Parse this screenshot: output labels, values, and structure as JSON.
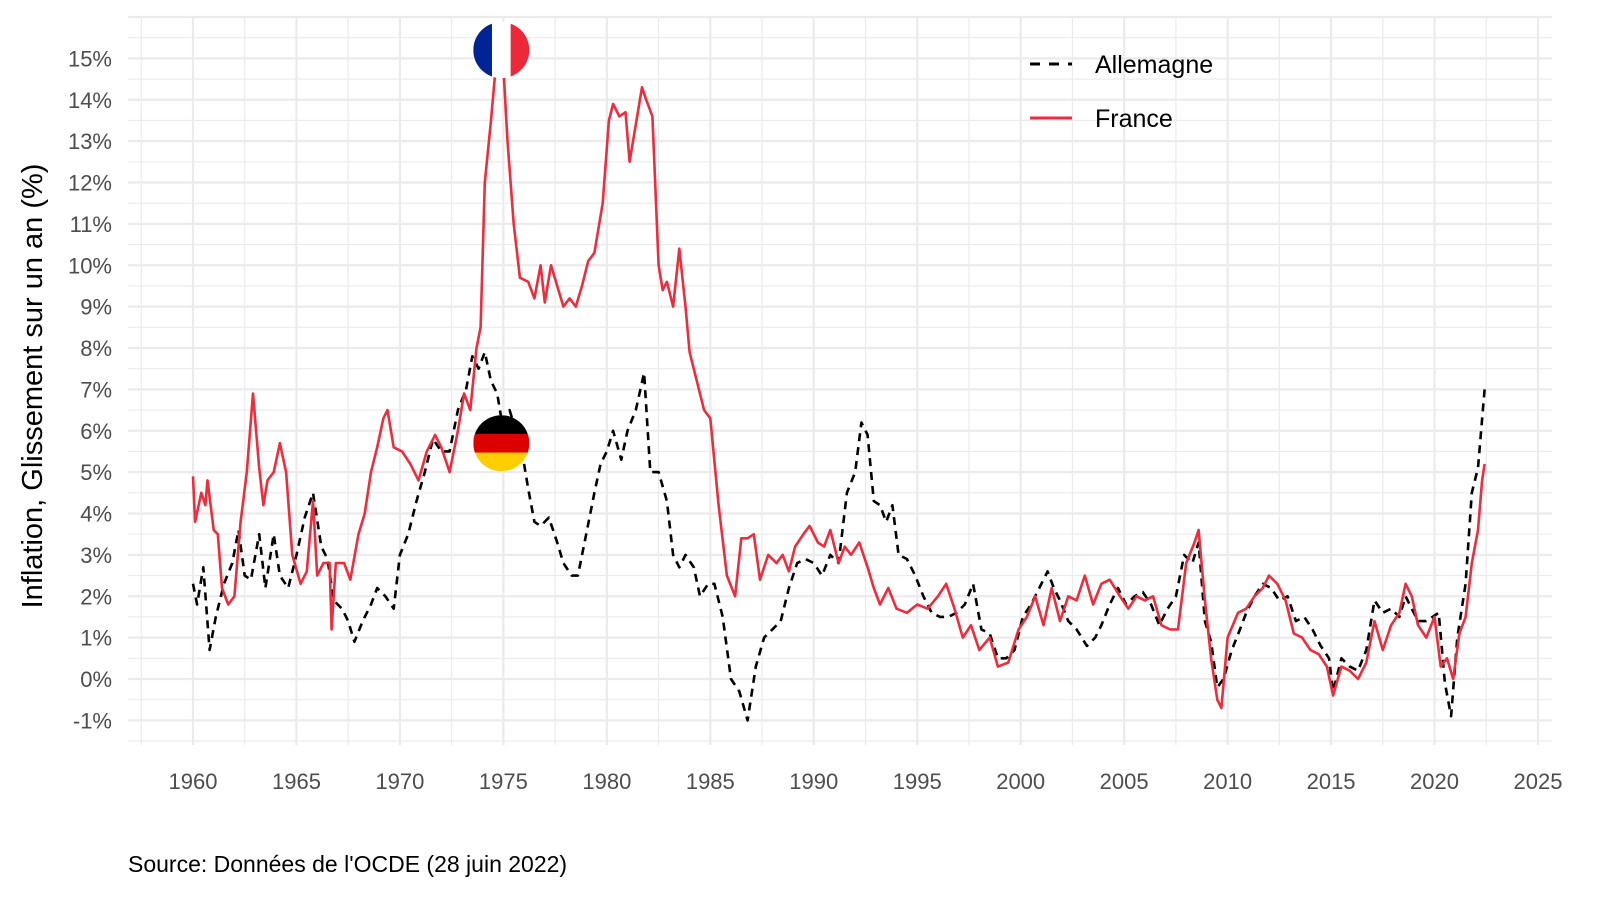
{
  "chart_data": {
    "type": "line",
    "title": "",
    "xlabel": "",
    "ylabel": "Inflation, Glissement sur un an (%)",
    "caption": "Source: Données de l'OCDE (28 juin 2022)",
    "xlim": [
      1957,
      2025.5
    ],
    "ylim": [
      -1.5,
      16
    ],
    "x_ticks": [
      1960,
      1965,
      1970,
      1975,
      1980,
      1985,
      1990,
      1995,
      2000,
      2005,
      2010,
      2015,
      2020,
      2025
    ],
    "y_ticks": [
      -1,
      0,
      1,
      2,
      3,
      4,
      5,
      6,
      7,
      8,
      9,
      10,
      11,
      12,
      13,
      14,
      15
    ],
    "y_tick_labels": [
      "-1%",
      "0%",
      "1%",
      "2%",
      "3%",
      "4%",
      "5%",
      "6%",
      "7%",
      "8%",
      "9%",
      "10%",
      "11%",
      "12%",
      "13%",
      "14%",
      "15%"
    ],
    "grid": true,
    "legend_position": "top-right",
    "flags": [
      {
        "series": "France",
        "x": 1974.9,
        "y": 15.2,
        "colors": [
          "#002395",
          "#ffffff",
          "#ED2939"
        ]
      },
      {
        "series": "Allemagne",
        "x": 1974.9,
        "y": 5.7,
        "colors": [
          "#000000",
          "#DD0000",
          "#FFCE00"
        ]
      }
    ],
    "series": [
      {
        "name": "Allemagne",
        "color": "#000000",
        "style": "dashed",
        "x": [
          1960.0,
          1960.2,
          1960.5,
          1960.8,
          1961.1,
          1961.5,
          1961.9,
          1962.2,
          1962.5,
          1962.8,
          1963.2,
          1963.5,
          1963.9,
          1964.2,
          1964.6,
          1965.0,
          1965.4,
          1965.8,
          1966.2,
          1966.5,
          1966.8,
          1967.2,
          1967.5,
          1967.8,
          1968.2,
          1968.6,
          1968.9,
          1969.3,
          1969.7,
          1970.0,
          1970.4,
          1970.8,
          1971.2,
          1971.6,
          1972.0,
          1972.4,
          1972.8,
          1973.2,
          1973.5,
          1973.8,
          1974.1,
          1974.4,
          1974.7,
          1975.0,
          1975.3,
          1975.6,
          1975.9,
          1976.2,
          1976.5,
          1976.8,
          1977.2,
          1977.6,
          1977.9,
          1978.3,
          1978.6,
          1979.0,
          1979.4,
          1979.7,
          1980.0,
          1980.3,
          1980.7,
          1981.0,
          1981.4,
          1981.8,
          1982.1,
          1982.5,
          1982.9,
          1983.2,
          1983.5,
          1983.8,
          1984.2,
          1984.5,
          1984.9,
          1985.2,
          1985.6,
          1986.0,
          1986.4,
          1986.8,
          1987.2,
          1987.6,
          1988.0,
          1988.4,
          1988.8,
          1989.2,
          1989.6,
          1990.0,
          1990.4,
          1990.8,
          1991.2,
          1991.6,
          1992.0,
          1992.3,
          1992.6,
          1992.9,
          1993.2,
          1993.5,
          1993.8,
          1994.1,
          1994.5,
          1994.9,
          1995.3,
          1995.7,
          1996.1,
          1996.5,
          1996.9,
          1997.3,
          1997.7,
          1998.1,
          1998.5,
          1998.9,
          1999.3,
          1999.7,
          2000.1,
          2000.5,
          2000.9,
          2001.3,
          2001.6,
          2001.9,
          2002.3,
          2002.7,
          2003.2,
          2003.6,
          2003.9,
          2004.3,
          2004.7,
          2005.1,
          2005.5,
          2005.9,
          2006.3,
          2006.7,
          2007.1,
          2007.5,
          2007.9,
          2008.3,
          2008.6,
          2008.9,
          2009.2,
          2009.5,
          2009.8,
          2010.2,
          2010.6,
          2010.9,
          2011.3,
          2011.7,
          2012.1,
          2012.5,
          2012.9,
          2013.3,
          2013.7,
          2014.1,
          2014.5,
          2014.9,
          2015.1,
          2015.5,
          2015.9,
          2016.3,
          2016.7,
          2017.1,
          2017.5,
          2017.9,
          2018.3,
          2018.6,
          2018.9,
          2019.2,
          2019.6,
          2019.9,
          2020.2,
          2020.5,
          2020.8,
          2021.1,
          2021.5,
          2021.8,
          2022.1,
          2022.42
        ],
        "values": [
          2.3,
          1.8,
          2.7,
          0.7,
          1.5,
          2.3,
          2.8,
          3.6,
          2.5,
          2.4,
          3.5,
          2.2,
          3.5,
          2.5,
          2.2,
          3.0,
          3.9,
          4.5,
          3.2,
          2.9,
          1.9,
          1.7,
          1.4,
          0.9,
          1.4,
          1.8,
          2.2,
          2.0,
          1.7,
          3.0,
          3.5,
          4.3,
          5.0,
          5.8,
          5.5,
          5.5,
          6.5,
          7.0,
          7.8,
          7.5,
          7.9,
          7.2,
          6.9,
          6.0,
          6.5,
          6.0,
          5.5,
          4.6,
          3.8,
          3.7,
          3.9,
          3.3,
          2.8,
          2.5,
          2.5,
          3.5,
          4.5,
          5.2,
          5.5,
          6.0,
          5.3,
          6.0,
          6.5,
          7.4,
          5.0,
          5.0,
          4.3,
          3.0,
          2.7,
          3.0,
          2.7,
          2.0,
          2.3,
          2.3,
          1.5,
          0.0,
          -0.3,
          -1.0,
          0.3,
          1.0,
          1.2,
          1.4,
          2.2,
          2.8,
          2.9,
          2.8,
          2.5,
          3.0,
          2.8,
          4.5,
          5.0,
          6.2,
          5.9,
          4.3,
          4.2,
          3.8,
          4.2,
          3.0,
          2.9,
          2.5,
          2.0,
          1.6,
          1.5,
          1.5,
          1.6,
          1.8,
          2.3,
          1.2,
          1.1,
          0.5,
          0.5,
          0.7,
          1.5,
          1.8,
          2.2,
          2.6,
          2.2,
          1.9,
          1.4,
          1.2,
          0.8,
          1.0,
          1.3,
          1.8,
          2.2,
          1.8,
          2.0,
          2.1,
          1.8,
          1.3,
          1.7,
          2.0,
          3.0,
          2.8,
          3.3,
          1.4,
          0.9,
          -0.2,
          0.0,
          0.7,
          1.2,
          1.6,
          2.0,
          2.3,
          2.2,
          1.9,
          2.0,
          1.4,
          1.5,
          1.2,
          0.8,
          0.5,
          -0.3,
          0.5,
          0.3,
          0.2,
          0.7,
          1.9,
          1.6,
          1.7,
          1.5,
          2.0,
          1.7,
          1.4,
          1.4,
          1.5,
          1.6,
          -0.1,
          -0.9,
          1.0,
          2.3,
          4.5,
          5.1,
          7.0
        ]
      },
      {
        "name": "France",
        "color": "#EE2C3C",
        "style": "solid",
        "x": [
          1960.0,
          1960.1,
          1960.4,
          1960.6,
          1960.7,
          1961.0,
          1961.2,
          1961.4,
          1961.7,
          1962.0,
          1962.3,
          1962.6,
          1962.9,
          1963.2,
          1963.4,
          1963.6,
          1963.9,
          1964.2,
          1964.5,
          1964.8,
          1965.2,
          1965.5,
          1965.8,
          1966.0,
          1966.3,
          1966.6,
          1966.7,
          1966.9,
          1967.3,
          1967.6,
          1968.0,
          1968.3,
          1968.6,
          1968.9,
          1969.2,
          1969.4,
          1969.7,
          1970.1,
          1970.5,
          1970.9,
          1971.3,
          1971.7,
          1972.0,
          1972.4,
          1972.8,
          1973.1,
          1973.4,
          1973.7,
          1973.9,
          1974.1,
          1974.4,
          1974.7,
          1974.95,
          1975.2,
          1975.5,
          1975.8,
          1976.2,
          1976.5,
          1976.8,
          1977.0,
          1977.3,
          1977.6,
          1977.9,
          1978.2,
          1978.5,
          1978.8,
          1979.1,
          1979.4,
          1979.8,
          1980.1,
          1980.3,
          1980.6,
          1980.9,
          1981.1,
          1981.4,
          1981.7,
          1981.9,
          1982.2,
          1982.5,
          1982.7,
          1982.9,
          1983.2,
          1983.5,
          1983.8,
          1984.0,
          1984.3,
          1984.7,
          1985.0,
          1985.4,
          1985.8,
          1986.2,
          1986.5,
          1986.8,
          1987.1,
          1987.4,
          1987.8,
          1988.2,
          1988.5,
          1988.8,
          1989.1,
          1989.5,
          1989.8,
          1990.2,
          1990.5,
          1990.8,
          1991.2,
          1991.5,
          1991.8,
          1992.2,
          1992.6,
          1992.9,
          1993.2,
          1993.6,
          1994.0,
          1994.5,
          1995.0,
          1995.5,
          1996.0,
          1996.4,
          1996.8,
          1997.2,
          1997.6,
          1998.0,
          1998.5,
          1998.9,
          1999.4,
          1999.9,
          2000.3,
          2000.7,
          2001.1,
          2001.5,
          2001.9,
          2002.3,
          2002.7,
          2003.1,
          2003.5,
          2003.9,
          2004.3,
          2004.8,
          2005.2,
          2005.6,
          2006.0,
          2006.4,
          2006.8,
          2007.2,
          2007.6,
          2008.0,
          2008.4,
          2008.6,
          2008.9,
          2009.2,
          2009.5,
          2009.7,
          2010.0,
          2010.5,
          2010.9,
          2011.3,
          2011.7,
          2012.0,
          2012.4,
          2012.8,
          2013.2,
          2013.6,
          2014.0,
          2014.4,
          2014.8,
          2015.1,
          2015.5,
          2015.9,
          2016.3,
          2016.7,
          2017.1,
          2017.5,
          2017.9,
          2018.3,
          2018.6,
          2018.9,
          2019.2,
          2019.6,
          2020.0,
          2020.3,
          2020.6,
          2020.9,
          2021.2,
          2021.5,
          2021.8,
          2022.1,
          2022.3,
          2022.42
        ],
        "values": [
          4.9,
          3.8,
          4.5,
          4.2,
          4.8,
          3.6,
          3.5,
          2.2,
          1.8,
          2.0,
          3.8,
          5.0,
          6.9,
          5.1,
          4.2,
          4.8,
          5.0,
          5.7,
          5.0,
          3.0,
          2.3,
          2.6,
          4.3,
          2.5,
          2.8,
          2.8,
          1.2,
          2.8,
          2.8,
          2.4,
          3.5,
          4.0,
          5.0,
          5.6,
          6.3,
          6.5,
          5.6,
          5.5,
          5.2,
          4.8,
          5.5,
          5.9,
          5.6,
          5.0,
          6.0,
          6.9,
          6.5,
          8.0,
          8.5,
          12.0,
          13.5,
          15.2,
          15.2,
          13.0,
          11.0,
          9.7,
          9.6,
          9.2,
          10.0,
          9.1,
          10.0,
          9.5,
          9.0,
          9.2,
          9.0,
          9.5,
          10.1,
          10.3,
          11.5,
          13.5,
          13.9,
          13.6,
          13.7,
          12.5,
          13.4,
          14.3,
          14.0,
          13.6,
          10.0,
          9.4,
          9.6,
          9.0,
          10.4,
          9.0,
          7.9,
          7.3,
          6.5,
          6.3,
          4.2,
          2.5,
          2.0,
          3.4,
          3.4,
          3.5,
          2.4,
          3.0,
          2.8,
          3.0,
          2.6,
          3.2,
          3.5,
          3.7,
          3.3,
          3.2,
          3.6,
          2.8,
          3.2,
          3.0,
          3.3,
          2.7,
          2.2,
          1.8,
          2.2,
          1.7,
          1.6,
          1.8,
          1.7,
          2.0,
          2.3,
          1.7,
          1.0,
          1.3,
          0.7,
          1.0,
          0.3,
          0.4,
          1.2,
          1.5,
          2.0,
          1.3,
          2.2,
          1.4,
          2.0,
          1.9,
          2.5,
          1.8,
          2.3,
          2.4,
          2.0,
          1.7,
          2.0,
          1.9,
          2.0,
          1.3,
          1.2,
          1.2,
          2.8,
          3.3,
          3.6,
          1.9,
          0.5,
          -0.5,
          -0.7,
          1.0,
          1.6,
          1.7,
          2.0,
          2.2,
          2.5,
          2.3,
          1.9,
          1.1,
          1.0,
          0.7,
          0.6,
          0.3,
          -0.4,
          0.3,
          0.2,
          0.0,
          0.4,
          1.4,
          0.7,
          1.3,
          1.6,
          2.3,
          2.0,
          1.3,
          1.0,
          1.5,
          0.3,
          0.5,
          0.0,
          1.1,
          1.5,
          2.8,
          3.6,
          4.8,
          5.2
        ]
      }
    ]
  }
}
